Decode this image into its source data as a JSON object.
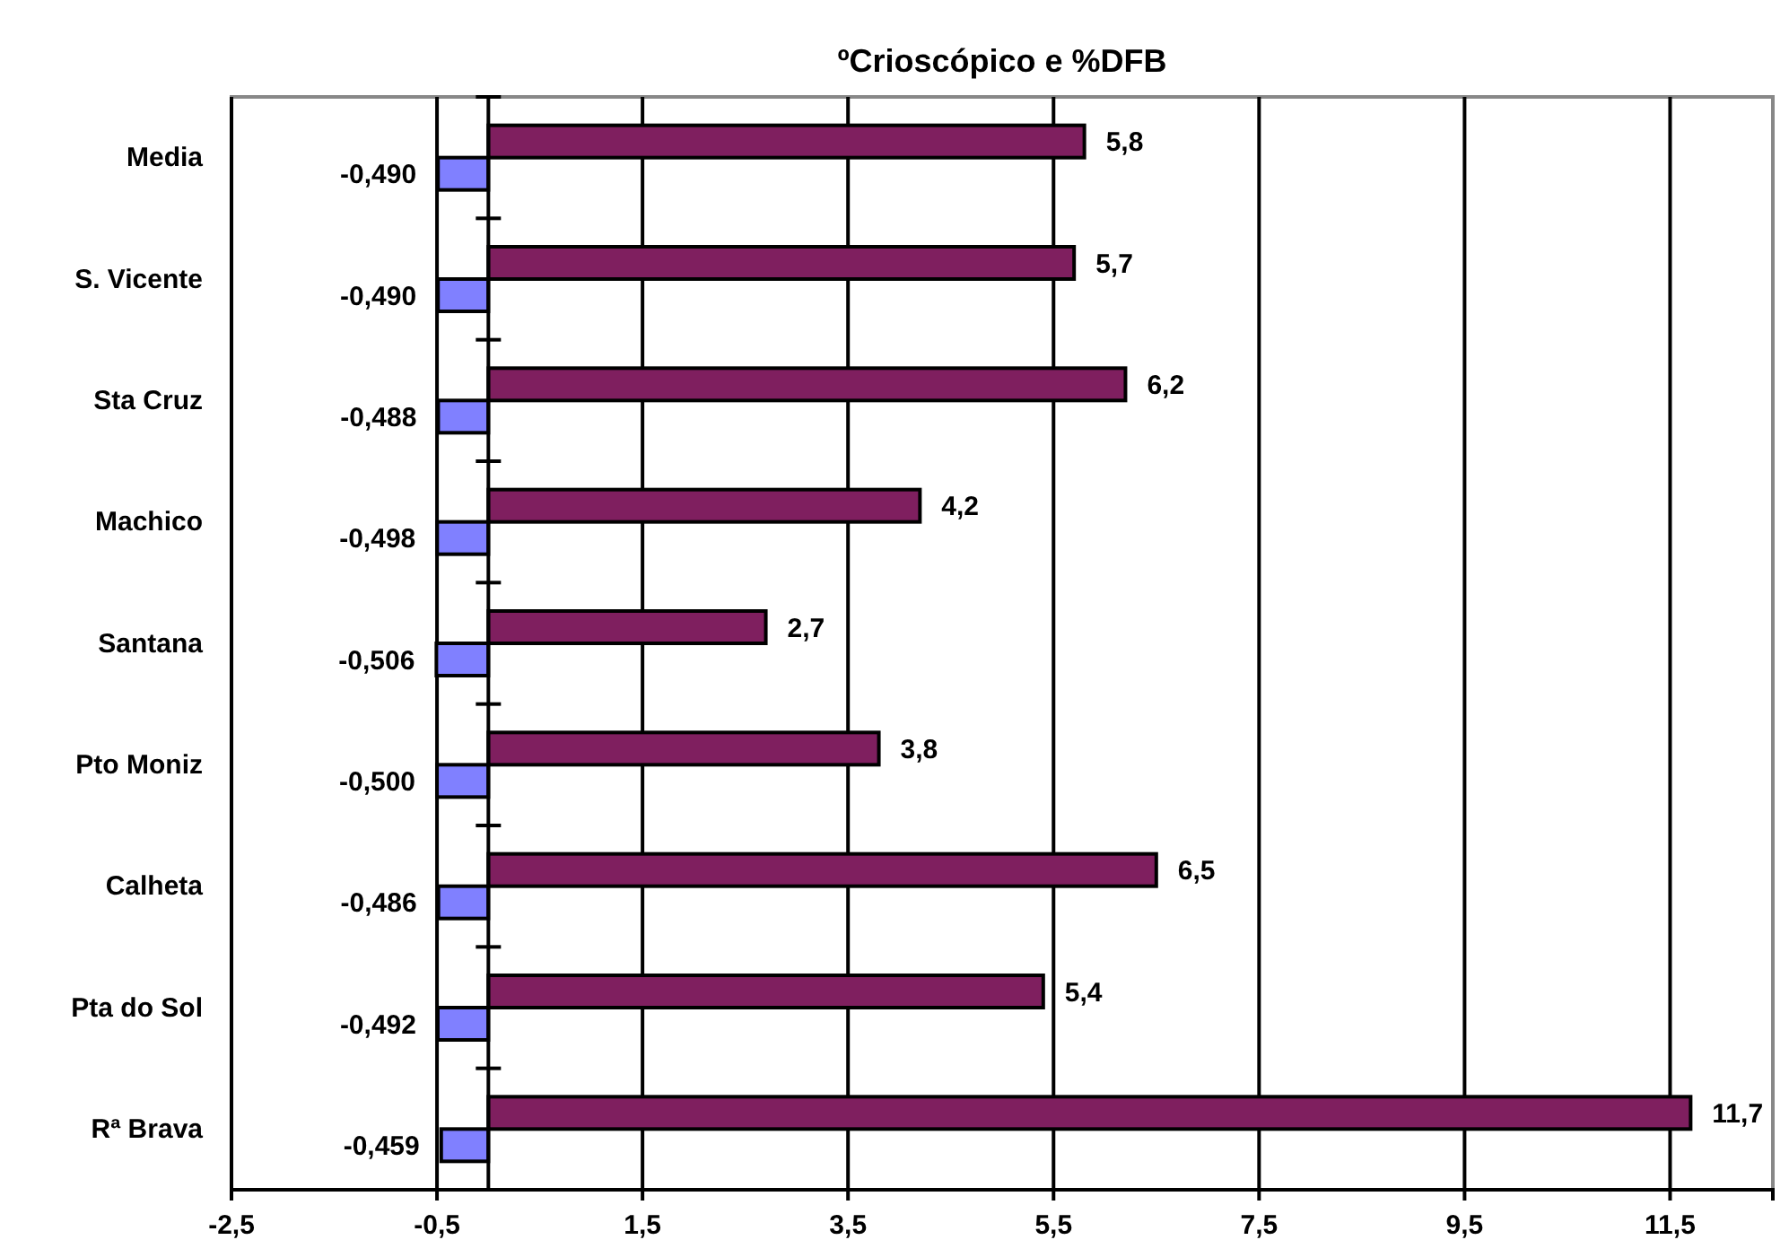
{
  "chart_data": {
    "type": "bar",
    "orientation": "horizontal",
    "title": "ºCrioscópico e %DFB",
    "categories": [
      "Media",
      "S. Vicente",
      "Sta Cruz",
      "Machico",
      "Santana",
      "Pto Moniz",
      "Calheta",
      "Pta do Sol",
      "Rª Brava"
    ],
    "series": [
      {
        "color": "#7f1f5f",
        "values": [
          5.8,
          5.7,
          6.2,
          4.2,
          2.7,
          3.8,
          6.5,
          5.4,
          11.7
        ],
        "value_labels": [
          "5,8",
          "5,7",
          "6,2",
          "4,2",
          "2,7",
          "3,8",
          "6,5",
          "5,4",
          "11,7"
        ]
      },
      {
        "color": "#8080ff",
        "values": [
          -0.49,
          -0.49,
          -0.488,
          -0.498,
          -0.506,
          -0.5,
          -0.486,
          -0.492,
          -0.459
        ],
        "value_labels": [
          "-0,490",
          "-0,490",
          "-0,488",
          "-0,498",
          "-0,506",
          "-0,500",
          "-0,486",
          "-0,492",
          "-0,459"
        ]
      }
    ],
    "xlim": [
      -2.5,
      12.5
    ],
    "xticks": [
      {
        "value": -2.5,
        "label": "-2,5"
      },
      {
        "value": -0.5,
        "label": "-0,5"
      },
      {
        "value": 1.5,
        "label": "1,5"
      },
      {
        "value": 3.5,
        "label": "3,5"
      },
      {
        "value": 5.5,
        "label": "5,5"
      },
      {
        "value": 7.5,
        "label": "7,5"
      },
      {
        "value": 9.5,
        "label": "9,5"
      },
      {
        "value": 11.5,
        "label": "11,5"
      }
    ],
    "grid": "x"
  }
}
